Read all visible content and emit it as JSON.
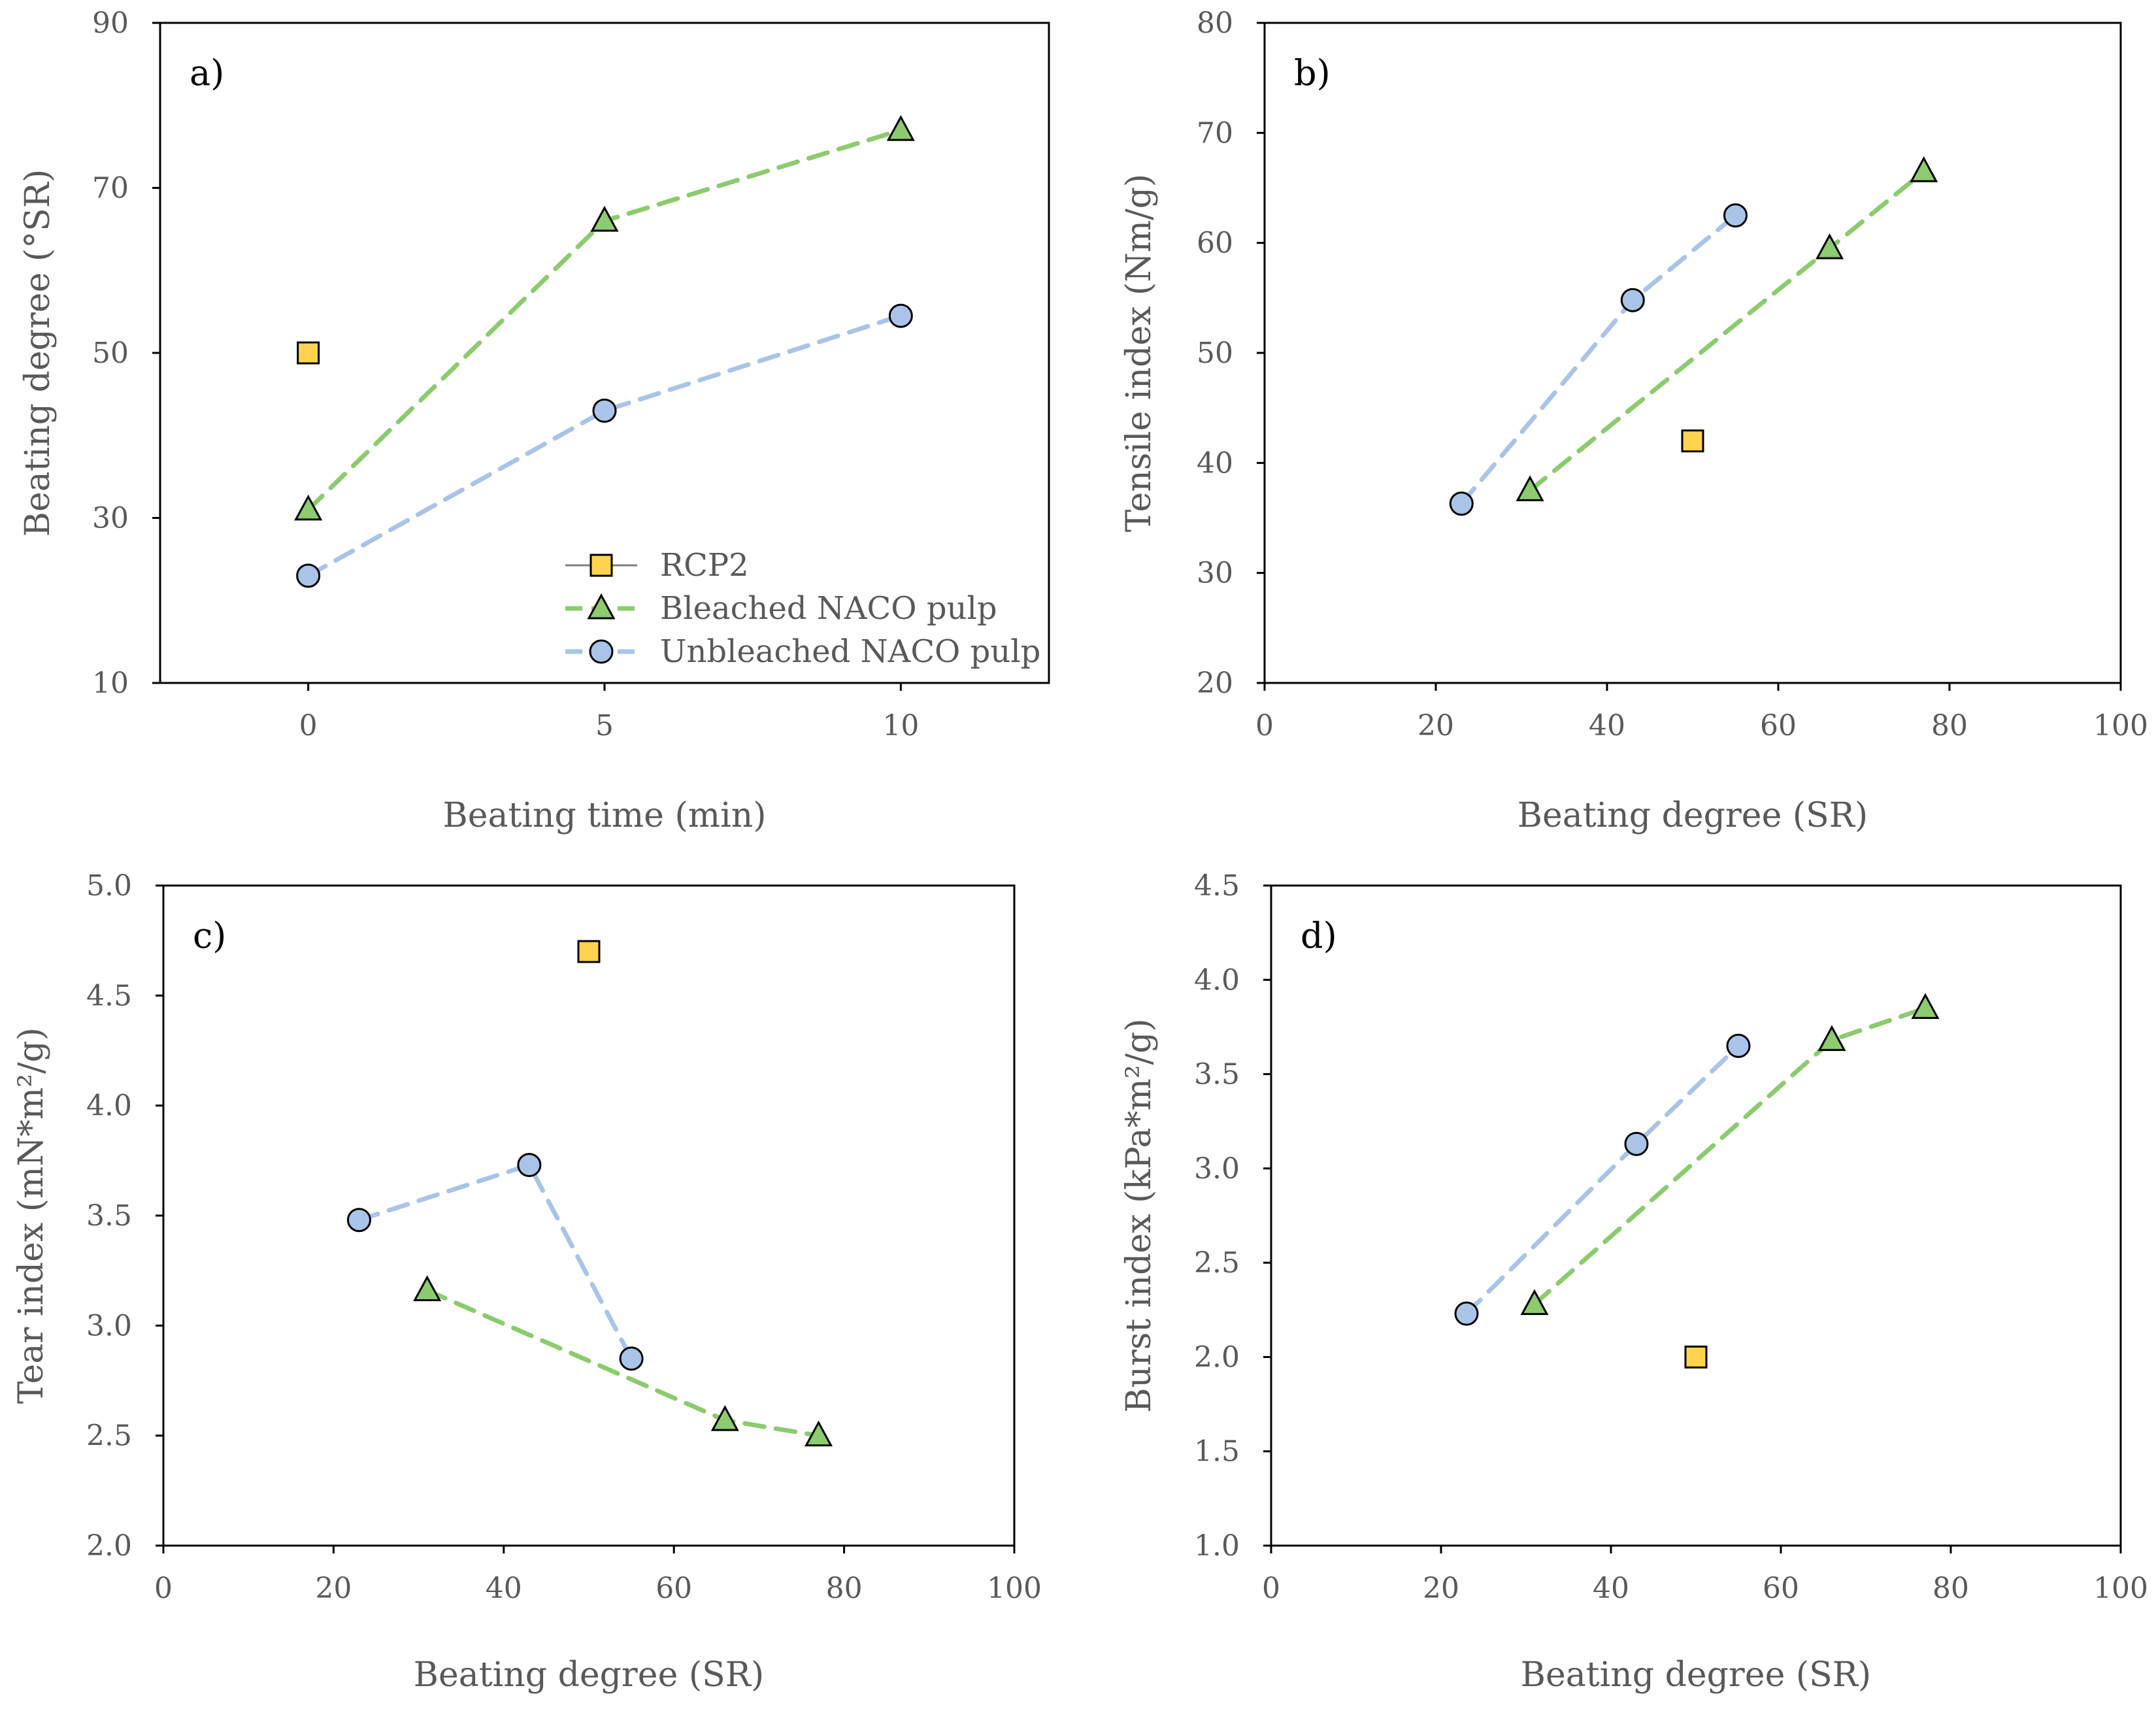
{
  "colors": {
    "rcp2": "#FFD34D",
    "bleached": "#8CCB6E",
    "unbleached": "#A9C4E8",
    "bleached_line": "#8CCB6E",
    "unbleached_line": "#A9C4E8",
    "marker_edge": "#000000"
  },
  "legend": {
    "items": [
      {
        "label": "RCP2",
        "marker": "square",
        "color": "#FFD34D"
      },
      {
        "label": "Bleached NACO pulp",
        "marker": "triangle",
        "color": "#8CCB6E"
      },
      {
        "label": "Unbleached NACO pulp",
        "marker": "circle",
        "color": "#A9C4E8"
      }
    ]
  },
  "chart_data": [
    {
      "id": "a",
      "panel_label": "a)",
      "type": "line",
      "xlabel": "Beating time (min)",
      "ylabel": "Beating degree (°SR)",
      "xlim": [
        -2.5,
        12.5
      ],
      "ylim": [
        10,
        90
      ],
      "xticks": [
        0,
        5,
        10
      ],
      "yticks": [
        10,
        30,
        50,
        70,
        90
      ],
      "xtick_labels": [
        "0",
        "5",
        "10"
      ],
      "ytick_labels": [
        "10",
        "30",
        "50",
        "70",
        "90"
      ],
      "legend_position": "bottom-right",
      "series": [
        {
          "name": "RCP2",
          "marker": "square",
          "line": false,
          "x": [
            0
          ],
          "y": [
            50
          ]
        },
        {
          "name": "Bleached NACO pulp",
          "marker": "triangle",
          "line": true,
          "x": [
            0,
            5,
            10
          ],
          "y": [
            31,
            66,
            77
          ]
        },
        {
          "name": "Unbleached NACO pulp",
          "marker": "circle",
          "line": true,
          "x": [
            0,
            5,
            10
          ],
          "y": [
            23,
            43,
            54.5
          ]
        }
      ]
    },
    {
      "id": "b",
      "panel_label": "b)",
      "type": "scatter",
      "xlabel": "Beating degree (SR)",
      "ylabel": "Tensile index (Nm/g)",
      "xlim": [
        0,
        100
      ],
      "ylim": [
        20,
        80
      ],
      "xticks": [
        0,
        20,
        40,
        60,
        80,
        100
      ],
      "yticks": [
        20,
        30,
        40,
        50,
        60,
        70,
        80
      ],
      "xtick_labels": [
        "0",
        "20",
        "40",
        "60",
        "80",
        "100"
      ],
      "ytick_labels": [
        "20",
        "30",
        "40",
        "50",
        "60",
        "70",
        "80"
      ],
      "series": [
        {
          "name": "RCP2",
          "marker": "square",
          "line": false,
          "x": [
            50
          ],
          "y": [
            42
          ]
        },
        {
          "name": "Bleached NACO pulp",
          "marker": "triangle",
          "line": true,
          "x": [
            31,
            66,
            77
          ],
          "y": [
            37.5,
            59.5,
            66.5
          ]
        },
        {
          "name": "Unbleached NACO pulp",
          "marker": "circle",
          "line": true,
          "x": [
            23,
            43,
            55
          ],
          "y": [
            36.3,
            54.8,
            62.5
          ]
        }
      ]
    },
    {
      "id": "c",
      "panel_label": "c)",
      "type": "scatter",
      "xlabel": "Beating degree (SR)",
      "ylabel": "Tear index (mN*m²/g)",
      "xlim": [
        0,
        100
      ],
      "ylim": [
        2.0,
        5.0
      ],
      "xticks": [
        0,
        20,
        40,
        60,
        80,
        100
      ],
      "yticks": [
        2.0,
        2.5,
        3.0,
        3.5,
        4.0,
        4.5,
        5.0
      ],
      "xtick_labels": [
        "0",
        "20",
        "40",
        "60",
        "80",
        "100"
      ],
      "ytick_labels": [
        "2.0",
        "2.5",
        "3.0",
        "3.5",
        "4.0",
        "4.5",
        "5.0"
      ],
      "series": [
        {
          "name": "RCP2",
          "marker": "square",
          "line": false,
          "x": [
            50
          ],
          "y": [
            4.7
          ]
        },
        {
          "name": "Bleached NACO pulp",
          "marker": "triangle",
          "line": true,
          "x": [
            31,
            66,
            77
          ],
          "y": [
            3.16,
            2.57,
            2.5
          ]
        },
        {
          "name": "Unbleached NACO pulp",
          "marker": "circle",
          "line": true,
          "x": [
            23,
            43,
            55
          ],
          "y": [
            3.48,
            3.73,
            2.85
          ]
        }
      ]
    },
    {
      "id": "d",
      "panel_label": "d)",
      "type": "scatter",
      "xlabel": "Beating degree (SR)",
      "ylabel": "Burst index (kPa*m²/g)",
      "xlim": [
        0,
        100
      ],
      "ylim": [
        1.0,
        4.5
      ],
      "xticks": [
        0,
        20,
        40,
        60,
        80,
        100
      ],
      "yticks": [
        1.0,
        1.5,
        2.0,
        2.5,
        3.0,
        3.5,
        4.0,
        4.5
      ],
      "xtick_labels": [
        "0",
        "20",
        "40",
        "60",
        "80",
        "100"
      ],
      "ytick_labels": [
        "1.0",
        "1.5",
        "2.0",
        "2.5",
        "3.0",
        "3.5",
        "4.0",
        "4.5"
      ],
      "series": [
        {
          "name": "RCP2",
          "marker": "square",
          "line": false,
          "x": [
            50
          ],
          "y": [
            2.0
          ]
        },
        {
          "name": "Bleached NACO pulp",
          "marker": "triangle",
          "line": true,
          "x": [
            31,
            66,
            77
          ],
          "y": [
            2.28,
            3.68,
            3.85
          ]
        },
        {
          "name": "Unbleached NACO pulp",
          "marker": "circle",
          "line": true,
          "x": [
            23,
            43,
            55
          ],
          "y": [
            2.23,
            3.13,
            3.65
          ]
        }
      ]
    }
  ]
}
